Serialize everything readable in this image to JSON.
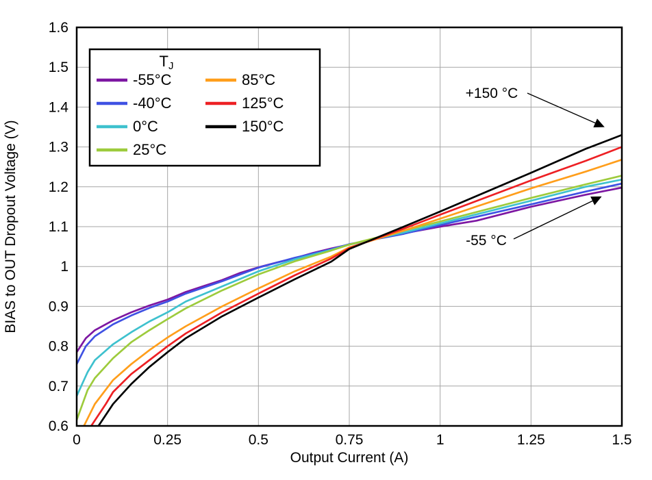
{
  "chart_data": {
    "type": "line",
    "title": "",
    "xlabel": "Output Current (A)",
    "ylabel": "BIAS to OUT Dropout Voltage (V)",
    "xlim": [
      0,
      1.5
    ],
    "ylim": [
      0.6,
      1.6
    ],
    "xticks": [
      0,
      0.25,
      0.5,
      0.75,
      1,
      1.25,
      1.5
    ],
    "xtick_labels": [
      "0",
      "0.25",
      "0.5",
      "0.75",
      "1",
      "1.25",
      "1.5"
    ],
    "yticks": [
      0.6,
      0.7,
      0.8,
      0.9,
      1.0,
      1.1,
      1.2,
      1.3,
      1.4,
      1.5,
      1.6
    ],
    "ytick_labels": [
      "0.6",
      "0.7",
      "0.8",
      "0.9",
      "1",
      "1.1",
      "1.2",
      "1.3",
      "1.4",
      "1.5",
      "1.6"
    ],
    "grid": true,
    "grid_color": "#A6A6A6",
    "border_color": "#000000",
    "legend": {
      "title": "T",
      "title_sub": "J",
      "position": "top-left",
      "columns": 2
    },
    "series": [
      {
        "name": "-55°C",
        "color": "#7D17A2",
        "points": [
          [
            0,
            0.785
          ],
          [
            0.025,
            0.82
          ],
          [
            0.05,
            0.84
          ],
          [
            0.1,
            0.865
          ],
          [
            0.15,
            0.885
          ],
          [
            0.2,
            0.902
          ],
          [
            0.25,
            0.917
          ],
          [
            0.3,
            0.936
          ],
          [
            0.35,
            0.951
          ],
          [
            0.4,
            0.966
          ],
          [
            0.45,
            0.984
          ],
          [
            0.5,
            0.998
          ],
          [
            0.55,
            1.01
          ],
          [
            0.6,
            1.021
          ],
          [
            0.65,
            1.034
          ],
          [
            0.7,
            1.045
          ],
          [
            0.75,
            1.055
          ],
          [
            0.85,
            1.075
          ],
          [
            1.0,
            1.1
          ],
          [
            1.1,
            1.115
          ],
          [
            1.25,
            1.15
          ],
          [
            1.4,
            1.18
          ],
          [
            1.5,
            1.198
          ]
        ]
      },
      {
        "name": "-40°C",
        "color": "#3F51E3",
        "points": [
          [
            0,
            0.755
          ],
          [
            0.025,
            0.8
          ],
          [
            0.05,
            0.825
          ],
          [
            0.1,
            0.855
          ],
          [
            0.15,
            0.877
          ],
          [
            0.2,
            0.896
          ],
          [
            0.25,
            0.912
          ],
          [
            0.3,
            0.932
          ],
          [
            0.4,
            0.963
          ],
          [
            0.5,
            0.997
          ],
          [
            0.6,
            1.022
          ],
          [
            0.7,
            1.043
          ],
          [
            0.75,
            1.056
          ],
          [
            0.9,
            1.082
          ],
          [
            1.0,
            1.104
          ],
          [
            1.25,
            1.156
          ],
          [
            1.4,
            1.188
          ],
          [
            1.5,
            1.208
          ]
        ]
      },
      {
        "name": "0°C",
        "color": "#3EC1CE",
        "points": [
          [
            0,
            0.675
          ],
          [
            0.03,
            0.735
          ],
          [
            0.05,
            0.765
          ],
          [
            0.1,
            0.805
          ],
          [
            0.15,
            0.835
          ],
          [
            0.2,
            0.862
          ],
          [
            0.25,
            0.885
          ],
          [
            0.3,
            0.912
          ],
          [
            0.4,
            0.95
          ],
          [
            0.5,
            0.988
          ],
          [
            0.6,
            1.018
          ],
          [
            0.7,
            1.042
          ],
          [
            0.75,
            1.055
          ],
          [
            0.9,
            1.085
          ],
          [
            1.0,
            1.108
          ],
          [
            1.25,
            1.165
          ],
          [
            1.4,
            1.2
          ],
          [
            1.5,
            1.218
          ]
        ]
      },
      {
        "name": "25°C",
        "color": "#9DCB3C",
        "points": [
          [
            0,
            0.615
          ],
          [
            0.03,
            0.69
          ],
          [
            0.05,
            0.72
          ],
          [
            0.1,
            0.77
          ],
          [
            0.15,
            0.81
          ],
          [
            0.2,
            0.84
          ],
          [
            0.25,
            0.868
          ],
          [
            0.3,
            0.895
          ],
          [
            0.4,
            0.94
          ],
          [
            0.5,
            0.98
          ],
          [
            0.6,
            1.013
          ],
          [
            0.7,
            1.04
          ],
          [
            0.75,
            1.055
          ],
          [
            0.9,
            1.09
          ],
          [
            1.0,
            1.113
          ],
          [
            1.25,
            1.172
          ],
          [
            1.4,
            1.206
          ],
          [
            1.5,
            1.228
          ]
        ]
      },
      {
        "name": "85°C",
        "color": "#FF9E1B",
        "points": [
          [
            0.02,
            0.6
          ],
          [
            0.05,
            0.655
          ],
          [
            0.1,
            0.715
          ],
          [
            0.15,
            0.755
          ],
          [
            0.2,
            0.79
          ],
          [
            0.25,
            0.822
          ],
          [
            0.3,
            0.85
          ],
          [
            0.4,
            0.9
          ],
          [
            0.5,
            0.945
          ],
          [
            0.6,
            0.988
          ],
          [
            0.7,
            1.025
          ],
          [
            0.75,
            1.048
          ],
          [
            0.9,
            1.09
          ],
          [
            1.0,
            1.12
          ],
          [
            1.25,
            1.196
          ],
          [
            1.4,
            1.238
          ],
          [
            1.5,
            1.268
          ]
        ]
      },
      {
        "name": "125°C",
        "color": "#ED2024",
        "points": [
          [
            0.04,
            0.6
          ],
          [
            0.08,
            0.655
          ],
          [
            0.1,
            0.685
          ],
          [
            0.15,
            0.73
          ],
          [
            0.2,
            0.765
          ],
          [
            0.25,
            0.8
          ],
          [
            0.3,
            0.832
          ],
          [
            0.4,
            0.885
          ],
          [
            0.5,
            0.932
          ],
          [
            0.6,
            0.978
          ],
          [
            0.7,
            1.02
          ],
          [
            0.75,
            1.046
          ],
          [
            0.9,
            1.095
          ],
          [
            1.0,
            1.13
          ],
          [
            1.25,
            1.216
          ],
          [
            1.4,
            1.265
          ],
          [
            1.5,
            1.3
          ]
        ]
      },
      {
        "name": "150°C",
        "color": "#000000",
        "points": [
          [
            0.06,
            0.6
          ],
          [
            0.1,
            0.655
          ],
          [
            0.15,
            0.705
          ],
          [
            0.2,
            0.748
          ],
          [
            0.25,
            0.785
          ],
          [
            0.3,
            0.82
          ],
          [
            0.4,
            0.875
          ],
          [
            0.5,
            0.922
          ],
          [
            0.6,
            0.968
          ],
          [
            0.7,
            1.012
          ],
          [
            0.75,
            1.044
          ],
          [
            0.9,
            1.1
          ],
          [
            1.0,
            1.138
          ],
          [
            1.25,
            1.235
          ],
          [
            1.4,
            1.295
          ],
          [
            1.5,
            1.33
          ]
        ]
      }
    ],
    "annotations": [
      {
        "label": "+150 °C",
        "tx": 718,
        "ty": 143,
        "x1": 770,
        "y1": 136,
        "x2": 870,
        "y2": 180
      },
      {
        "label": "-55 °C",
        "tx": 710,
        "ty": 358,
        "x1": 750,
        "y1": 349,
        "x2": 866,
        "y2": 293
      }
    ]
  }
}
